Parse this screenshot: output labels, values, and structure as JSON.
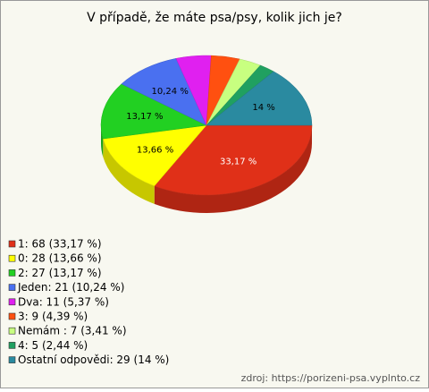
{
  "chart_data": {
    "type": "pie",
    "title": "V případě, že máte psa/psy, kolik jich je?",
    "categories": [
      "1: 68 (33,17 %)",
      "0: 28 (13,66 %)",
      "2: 27 (13,17 %)",
      "Jeden: 21 (10,24 %)",
      "Dva: 11 (5,37 %)",
      "3: 9 (4,39 %)",
      "Nemám : 7 (3,41 %)",
      "4: 5 (2,44 %)",
      "Ostatní odpovědi: 29 (14 %)"
    ],
    "values": [
      33.17,
      13.66,
      13.17,
      10.24,
      5.37,
      4.39,
      3.41,
      2.44,
      14
    ],
    "value_labels": [
      "33,17 %",
      "13,66 %",
      "13,17 %",
      "10,24 %",
      null,
      null,
      null,
      null,
      "14 %"
    ],
    "colors": [
      "#e03018",
      "#ffff00",
      "#22d022",
      "#4a70f0",
      "#e020f0",
      "#ff5010",
      "#c8ff80",
      "#20a060",
      "#2a8aa0"
    ],
    "legend": "bottom-left",
    "source": "zdroj: https://porizeni-psa.vyplnto.cz"
  }
}
